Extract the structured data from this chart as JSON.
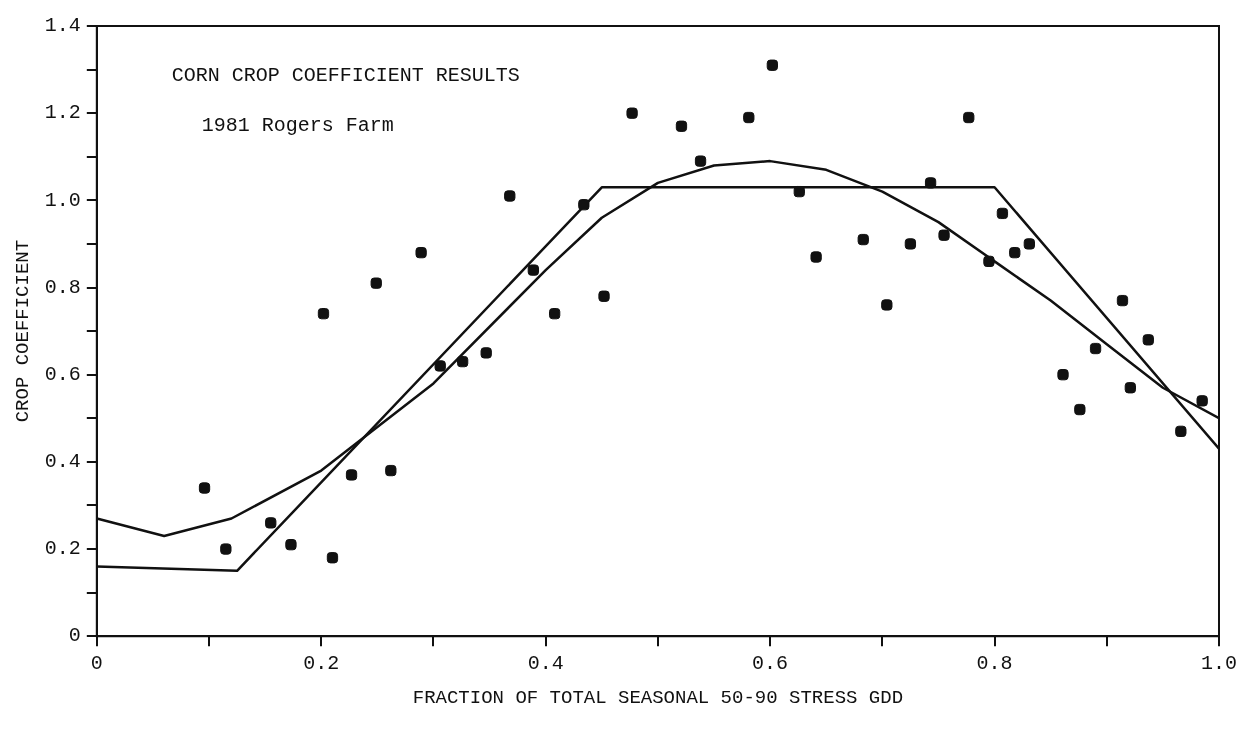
{
  "chart_data": {
    "type": "scatter",
    "xlabel": "FRACTION OF TOTAL SEASONAL 50-90 STRESS GDD",
    "ylabel": "CROP COEFFICIENT",
    "annotations": [
      "CORN CROP COEFFICIENT RESULTS",
      "1981 Rogers Farm"
    ],
    "xlim": [
      0,
      1.0
    ],
    "ylim": [
      0,
      1.4
    ],
    "xticks": [
      0,
      {
        "value": 0.1,
        "label": null
      },
      0.2,
      {
        "value": 0.3,
        "label": null
      },
      0.4,
      {
        "value": 0.5,
        "label": null
      },
      0.6,
      {
        "value": 0.7,
        "label": null
      },
      0.8,
      {
        "value": 0.9,
        "label": null
      },
      {
        "value": 1.0,
        "label": "1.0"
      }
    ],
    "yticks": [
      0,
      {
        "value": 0.1,
        "label": null
      },
      0.2,
      {
        "value": 0.3,
        "label": null
      },
      0.4,
      {
        "value": 0.5,
        "label": null
      },
      0.6,
      {
        "value": 0.7,
        "label": null
      },
      0.8,
      {
        "value": 0.9,
        "label": null
      },
      {
        "value": 1.0,
        "label": "1.0"
      },
      {
        "value": 1.1,
        "label": null
      },
      1.2,
      {
        "value": 1.3,
        "label": null
      },
      1.4
    ],
    "grid": false,
    "legend": false,
    "series": [
      {
        "type": "scatter",
        "color": "#111111",
        "marker": "square",
        "x": [
          0.096,
          0.115,
          0.155,
          0.173,
          0.202,
          0.21,
          0.227,
          0.249,
          0.262,
          0.289,
          0.306,
          0.326,
          0.347,
          0.368,
          0.389,
          0.408,
          0.434,
          0.452,
          0.477,
          0.521,
          0.538,
          0.581,
          0.602,
          0.626,
          0.641,
          0.683,
          0.704,
          0.725,
          0.743,
          0.755,
          0.777,
          0.795,
          0.807,
          0.818,
          0.831,
          0.861,
          0.876,
          0.89,
          0.914,
          0.921,
          0.937,
          0.966,
          0.985
        ],
        "values": [
          0.34,
          0.2,
          0.26,
          0.21,
          0.74,
          0.18,
          0.37,
          0.81,
          0.38,
          0.88,
          0.62,
          0.63,
          0.65,
          1.01,
          0.84,
          0.74,
          0.99,
          0.78,
          1.2,
          1.17,
          1.09,
          1.19,
          1.31,
          1.02,
          0.87,
          0.91,
          0.76,
          0.9,
          1.04,
          0.92,
          1.19,
          0.86,
          0.97,
          0.88,
          0.9,
          0.6,
          0.52,
          0.66,
          0.77,
          0.57,
          0.68,
          0.47,
          0.54
        ]
      },
      {
        "type": "line",
        "color": "#111111",
        "marker": "none",
        "line_style": "solid",
        "x": [
          0,
          0.125,
          0.45,
          0.8,
          1.0
        ],
        "values": [
          0.16,
          0.15,
          1.03,
          1.03,
          0.43
        ]
      },
      {
        "type": "line",
        "color": "#111111",
        "marker": "none",
        "line_style": "solid",
        "x": [
          0,
          0.06,
          0.12,
          0.2,
          0.3,
          0.4,
          0.45,
          0.5,
          0.55,
          0.6,
          0.65,
          0.7,
          0.75,
          0.8,
          0.85,
          0.9,
          0.95,
          1.0
        ],
        "values": [
          0.27,
          0.23,
          0.27,
          0.38,
          0.58,
          0.84,
          0.96,
          1.04,
          1.08,
          1.09,
          1.07,
          1.02,
          0.95,
          0.86,
          0.77,
          0.67,
          0.57,
          0.5
        ]
      }
    ]
  }
}
